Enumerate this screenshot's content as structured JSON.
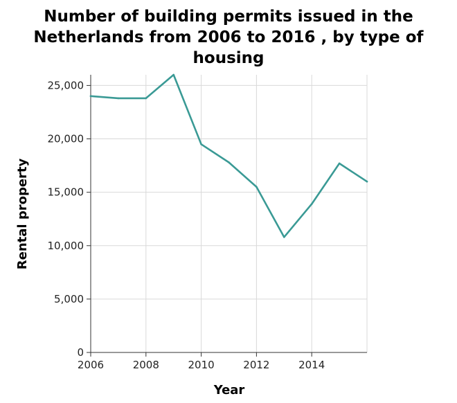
{
  "chart_data": {
    "type": "line",
    "title_lines": [
      "Number of building permits issued in the",
      "Netherlands from 2006 to 2016 , by type of",
      "housing"
    ],
    "xlabel": "Year",
    "ylabel": "Rental property",
    "xlim": [
      2006,
      2016
    ],
    "ylim": [
      0,
      26000
    ],
    "x_ticks": [
      2006,
      2008,
      2010,
      2012,
      2014
    ],
    "y_ticks": [
      0,
      5000,
      10000,
      15000,
      20000,
      25000
    ],
    "y_tick_labels": [
      "0",
      "5,000",
      "10,000",
      "15,000",
      "20,000",
      "25,000"
    ],
    "grid": true,
    "series": [
      {
        "color": "#3a9a95",
        "x": [
          2006,
          2007,
          2008,
          2009,
          2010,
          2011,
          2012,
          2013,
          2014,
          2015,
          2016
        ],
        "values": [
          24000,
          23800,
          23800,
          26000,
          19500,
          17800,
          15500,
          10800,
          13900,
          17700,
          16000
        ]
      }
    ]
  }
}
